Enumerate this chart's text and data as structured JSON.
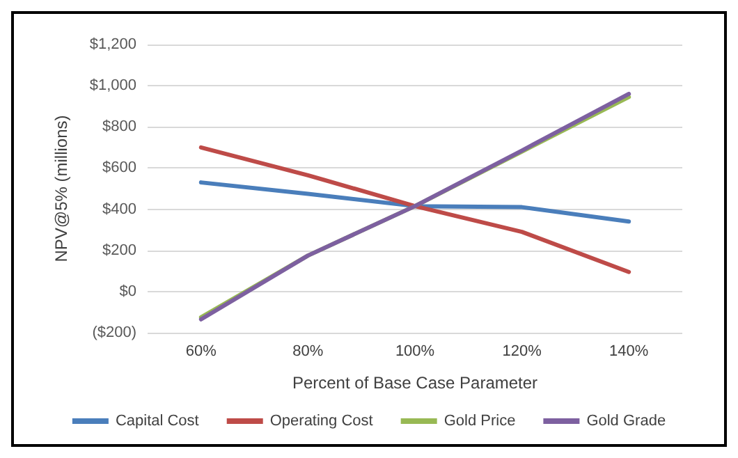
{
  "chart_data": {
    "type": "line",
    "xlabel": "Percent of Base Case Parameter",
    "ylabel": "NPV@5% (millions)",
    "categories": [
      "60%",
      "80%",
      "100%",
      "120%",
      "140%"
    ],
    "series": [
      {
        "name": "Capital Cost",
        "color": "#4a7ebb",
        "values": [
          530,
          475,
          415,
          410,
          340
        ]
      },
      {
        "name": "Operating Cost",
        "color": "#be4b48",
        "values": [
          700,
          565,
          415,
          290,
          95
        ]
      },
      {
        "name": "Gold Price",
        "color": "#98b954",
        "values": [
          -125,
          175,
          415,
          680,
          945
        ]
      },
      {
        "name": "Gold Grade",
        "color": "#7d60a0",
        "values": [
          -135,
          175,
          415,
          685,
          960
        ]
      }
    ],
    "ylim": [
      -200,
      1200
    ],
    "yticks": [
      {
        "value": -200,
        "label": "($200)"
      },
      {
        "value": 0,
        "label": "$0"
      },
      {
        "value": 200,
        "label": "$200"
      },
      {
        "value": 400,
        "label": "$400"
      },
      {
        "value": 600,
        "label": "$600"
      },
      {
        "value": 800,
        "label": "$800"
      },
      {
        "value": 1000,
        "label": "$1,000"
      },
      {
        "value": 1200,
        "label": "$1,200"
      }
    ],
    "grid": "y",
    "legend": "bottom",
    "marker": "none",
    "line_style": "solid"
  }
}
